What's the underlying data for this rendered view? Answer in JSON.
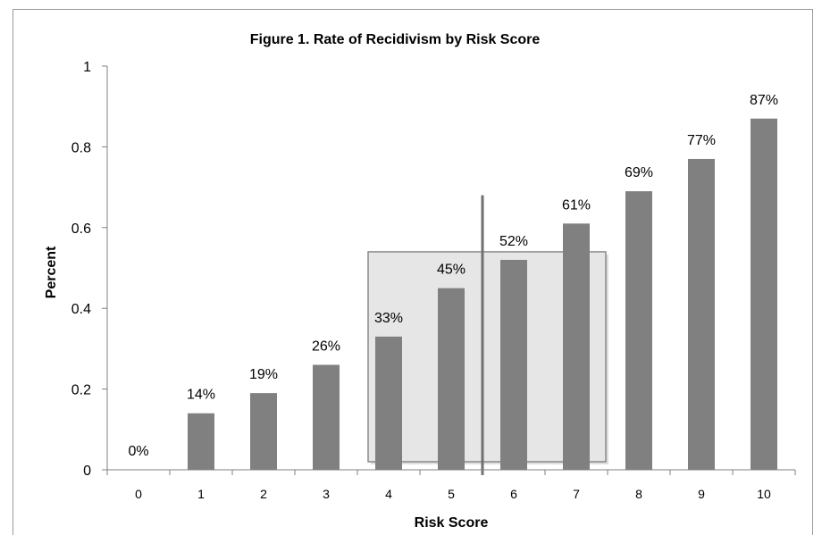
{
  "chart_data": {
    "type": "bar",
    "title": "Figure 1. Rate of Recidivism by Risk Score",
    "xlabel": "Risk Score",
    "ylabel": "Percent",
    "categories": [
      "0",
      "1",
      "2",
      "3",
      "4",
      "5",
      "6",
      "7",
      "8",
      "9",
      "10"
    ],
    "values": [
      0,
      0.14,
      0.19,
      0.26,
      0.33,
      0.45,
      0.52,
      0.61,
      0.69,
      0.77,
      0.87
    ],
    "data_labels": [
      "0%",
      "14%",
      "19%",
      "26%",
      "33%",
      "45%",
      "52%",
      "61%",
      "69%",
      "77%",
      "87%"
    ],
    "ylim": [
      0,
      1
    ],
    "yticks": [
      "0",
      "0.2",
      "0.4",
      "0.6",
      "0.8",
      "1"
    ],
    "ytick_values": [
      0,
      0.2,
      0.4,
      0.6,
      0.8,
      1
    ],
    "grid": false,
    "legend": "none",
    "bar_color": "#808080",
    "annotations": {
      "highlight_box": {
        "from_category": "4",
        "to_category": "7",
        "y_top": 0.54,
        "y_bottom": 0.02,
        "fill": "#e6e6e6",
        "stroke": "#8a8a8a"
      },
      "divider_line": {
        "between_categories": [
          "5",
          "6"
        ],
        "y_top": 0.68,
        "color": "#707070"
      }
    }
  }
}
